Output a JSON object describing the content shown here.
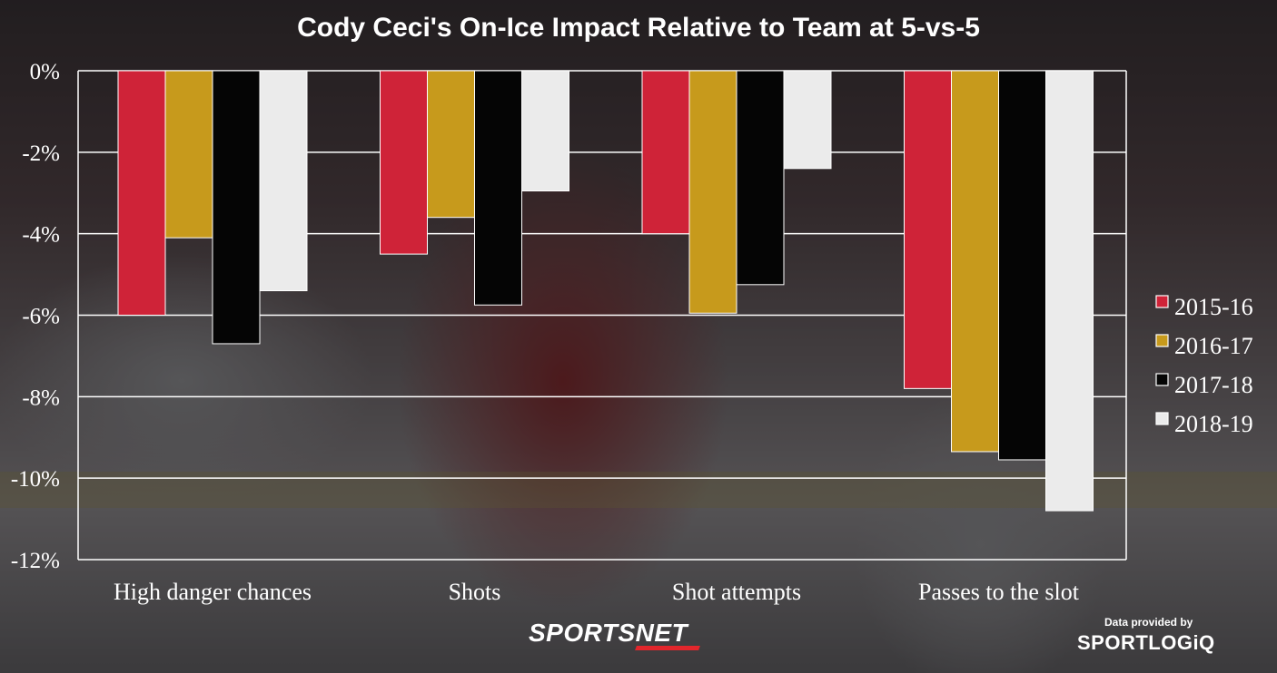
{
  "colors": {
    "2015-16": "#cf2338",
    "2016-17": "#c79a1c",
    "2017-18": "#050505",
    "2018-19": "#ebebeb"
  },
  "chart_data": {
    "type": "bar",
    "title": "Cody Ceci's On-Ice Impact Relative to Team at 5-vs-5",
    "categories": [
      "High danger chances",
      "Shots",
      "Shot attempts",
      "Passes to the slot"
    ],
    "series": [
      {
        "name": "2015-16",
        "values": [
          -6.0,
          -4.5,
          -4.0,
          -7.8
        ]
      },
      {
        "name": "2016-17",
        "values": [
          -4.1,
          -3.6,
          -5.95,
          -9.35
        ]
      },
      {
        "name": "2017-18",
        "values": [
          -6.7,
          -5.75,
          -5.25,
          -9.55
        ]
      },
      {
        "name": "2018-19",
        "values": [
          -5.4,
          -2.95,
          -2.4,
          -10.8
        ]
      }
    ],
    "y_ticks": [
      "0%",
      "-2%",
      "-4%",
      "-6%",
      "-8%",
      "-10%",
      "-12%"
    ],
    "ylim": [
      -12,
      0
    ],
    "xlabel": "",
    "ylabel": "",
    "grid": true,
    "legend_position": "right"
  },
  "branding": {
    "network": "SPORTSNET",
    "data_credit": "Data provided by",
    "partner": "SPORTLOGiQ"
  }
}
